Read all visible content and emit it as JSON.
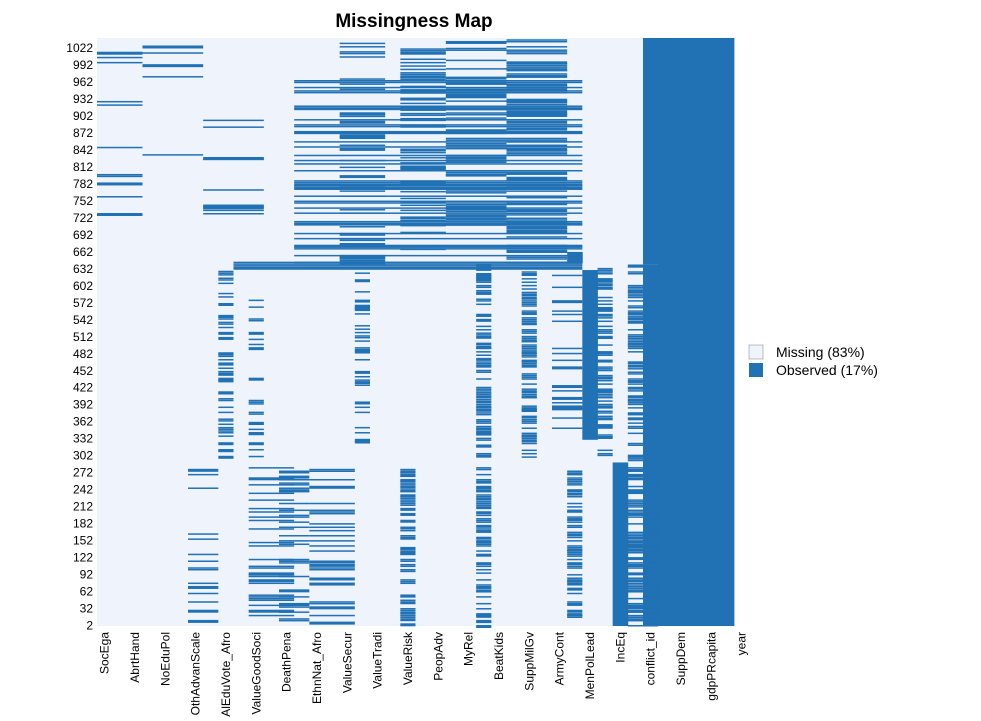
{
  "chart_data": {
    "type": "heatmap",
    "title": "Missingness Map",
    "xlabel": "",
    "ylabel": "",
    "y_tick_labels": [
      "1022",
      "992",
      "962",
      "932",
      "902",
      "872",
      "842",
      "812",
      "782",
      "752",
      "722",
      "692",
      "662",
      "632",
      "602",
      "572",
      "542",
      "512",
      "482",
      "452",
      "422",
      "392",
      "362",
      "332",
      "302",
      "272",
      "242",
      "212",
      "182",
      "152",
      "122",
      "92",
      "62",
      "32",
      "2"
    ],
    "x_tick_labels": [
      "SocEga",
      "AbrtHand",
      "NoEduPol",
      "OthAdvanScale",
      "AlEduVote_Afro",
      "ValueGoodSoci",
      "DeathPena",
      "EthnNat_Afro",
      "ValueSecur",
      "ValueTradi",
      "ValueRisk",
      "PeopAdv",
      "MyRel",
      "BeatKids",
      "SuppMilGv",
      "ArmyCont",
      "MenPolLead",
      "IncEq",
      "conflict_id",
      "SuppDem",
      "gdpPRcapita",
      "year"
    ],
    "n_columns": 42,
    "row_range": [
      1,
      1040
    ],
    "legend": {
      "placement": "right",
      "items": [
        {
          "label": "Missing (83%)",
          "color": "#eef3fc"
        },
        {
          "label": "Observed (17%)",
          "color": "#2171b5"
        }
      ]
    },
    "colors": {
      "missing": "#eef3fc",
      "observed": "#2171b5"
    }
  }
}
